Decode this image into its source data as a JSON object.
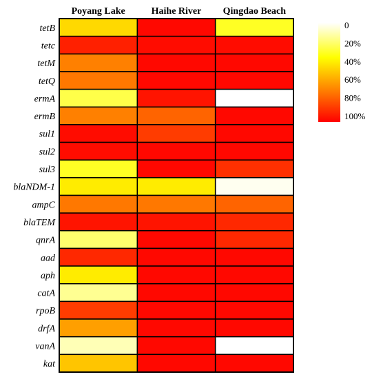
{
  "chart_data": {
    "type": "heatmap",
    "columns": [
      "Poyang Lake",
      "Haihe River",
      "Qingdao Beach"
    ],
    "rows": [
      "tetB",
      "tetc",
      "tetM",
      "tetQ",
      "ermA",
      "ermB",
      "sul1",
      "sul2",
      "sul3",
      "blaNDM-1",
      "ampC",
      "blaTEM",
      "qnrA",
      "aad",
      "aph",
      "catA",
      "rpoB",
      "drfA",
      "vanA",
      "kat"
    ],
    "values": [
      [
        45,
        98,
        30
      ],
      [
        92,
        97,
        97
      ],
      [
        68,
        98,
        98
      ],
      [
        70,
        98,
        98
      ],
      [
        25,
        95,
        0
      ],
      [
        68,
        75,
        98
      ],
      [
        97,
        85,
        98
      ],
      [
        97,
        98,
        98
      ],
      [
        30,
        98,
        88
      ],
      [
        40,
        40,
        2
      ],
      [
        70,
        70,
        75
      ],
      [
        95,
        95,
        90
      ],
      [
        20,
        98,
        90
      ],
      [
        90,
        98,
        98
      ],
      [
        40,
        98,
        98
      ],
      [
        15,
        98,
        98
      ],
      [
        85,
        98,
        98
      ],
      [
        60,
        98,
        98
      ],
      [
        10,
        98,
        0
      ],
      [
        50,
        98,
        98
      ]
    ],
    "colorscale": [
      "#ffffff",
      "#ffff00",
      "#ff8000",
      "#ff0000"
    ],
    "legend": {
      "ticks": [
        "0",
        "20%",
        "40%",
        "60%",
        "80%",
        "100%"
      ],
      "tick_values": [
        0,
        20,
        40,
        60,
        80,
        100
      ],
      "placement": "top-right"
    },
    "value_range": [
      0,
      100
    ]
  }
}
